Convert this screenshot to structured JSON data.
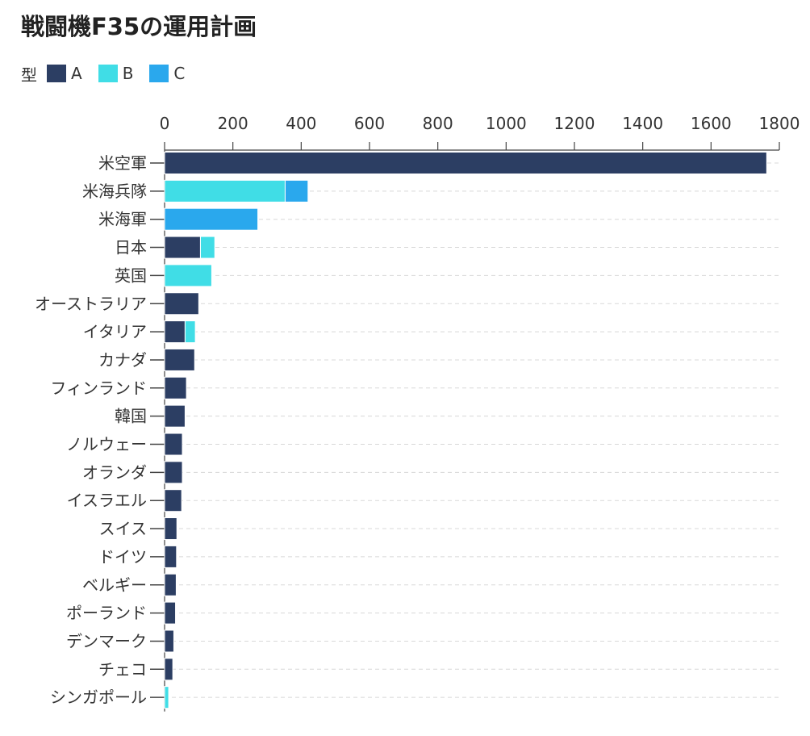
{
  "chart_data": {
    "type": "bar",
    "orientation": "horizontal",
    "stacked": true,
    "title": "戦闘機F35の運用計画",
    "legend_title": "型",
    "legend_position": "top-left",
    "categories": [
      "米空軍",
      "米海兵隊",
      "米海軍",
      "日本",
      "英国",
      "オーストラリア",
      "イタリア",
      "カナダ",
      "フィンランド",
      "韓国",
      "ノルウェー",
      "オランダ",
      "イスラエル",
      "スイス",
      "ドイツ",
      "ベルギー",
      "ポーランド",
      "デンマーク",
      "チェコ",
      "シンガポール"
    ],
    "series": [
      {
        "name": "A",
        "color": "#2c3e63",
        "values": [
          1763,
          0,
          0,
          105,
          0,
          100,
          60,
          88,
          64,
          60,
          52,
          52,
          50,
          36,
          35,
          34,
          32,
          27,
          24,
          0
        ]
      },
      {
        "name": "B",
        "color": "#40dde6",
        "values": [
          0,
          353,
          0,
          42,
          138,
          0,
          30,
          0,
          0,
          0,
          0,
          0,
          0,
          0,
          0,
          0,
          0,
          0,
          0,
          12
        ]
      },
      {
        "name": "C",
        "color": "#2aa8ed",
        "values": [
          0,
          67,
          273,
          0,
          0,
          0,
          0,
          0,
          0,
          0,
          0,
          0,
          0,
          0,
          0,
          0,
          0,
          0,
          0,
          0
        ]
      }
    ],
    "xlim": [
      0,
      1800
    ],
    "xticks": [
      0,
      200,
      400,
      600,
      800,
      1000,
      1200,
      1400,
      1600,
      1800
    ],
    "x_axis_position": "top",
    "grid": "horizontal dashed"
  }
}
